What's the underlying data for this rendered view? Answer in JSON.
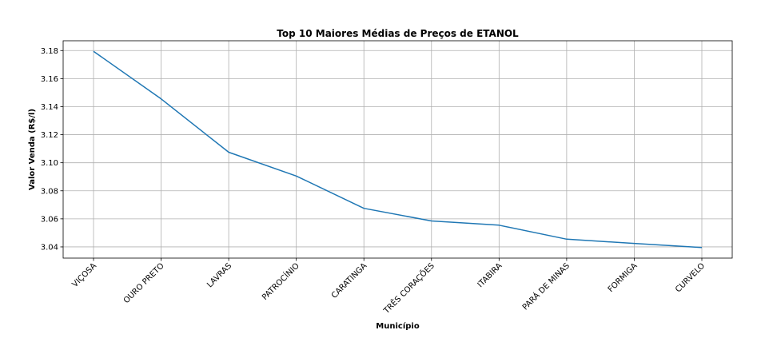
{
  "chart_data": {
    "type": "line",
    "title": "Top 10 Maiores Médias de Preços de ETANOL",
    "xlabel": "Município",
    "ylabel": "Valor Venda (R$/l)",
    "categories": [
      "VIÇOSA",
      "OURO PRETO",
      "LAVRAS",
      "PATROCÍNIO",
      "CARATINGA",
      "TRÊS CORAÇÕES",
      "ITABIRA",
      "PARÁ DE MINAS",
      "FORMIGA",
      "CURVELO"
    ],
    "series": [
      {
        "values": [
          3.1795,
          3.1455,
          3.1075,
          3.0905,
          3.0675,
          3.0585,
          3.0555,
          3.0455,
          3.0425,
          3.0395
        ],
        "color": "#1f77b4"
      }
    ],
    "yticks": [
      "3.04",
      "3.06",
      "3.08",
      "3.10",
      "3.12",
      "3.14",
      "3.16",
      "3.18"
    ],
    "ylim": [
      3.032,
      3.187
    ],
    "grid": true,
    "x_tick_rotation_deg": 45
  }
}
